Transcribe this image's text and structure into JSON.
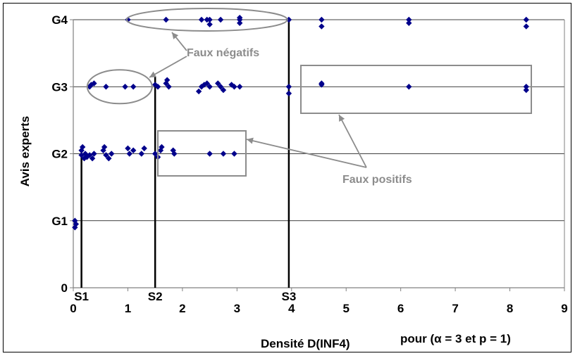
{
  "chart_data": {
    "type": "scatter",
    "title": "",
    "xlabel": "Densité D(INF4)",
    "xlabel_suffix": "pour (α = 3 et p = 1)",
    "ylabel": "Avis experts",
    "xlim": [
      0,
      9
    ],
    "x_ticks": [
      "0",
      "1",
      "2",
      "3",
      "4",
      "5",
      "6",
      "7",
      "8",
      "9"
    ],
    "y_ticks": [
      "0",
      "G1",
      "G2",
      "G3",
      "G4"
    ],
    "grid": "horizontal",
    "marker_color": "#00008b",
    "series": [
      {
        "points": [
          [
            0.03,
            0.9
          ],
          [
            0.03,
            1.0
          ],
          [
            0.05,
            0.95
          ],
          [
            0.15,
            1.98
          ],
          [
            0.15,
            2.05
          ],
          [
            0.17,
            2.1
          ],
          [
            0.2,
            1.93
          ],
          [
            0.22,
            2.0
          ],
          [
            0.25,
            1.95
          ],
          [
            0.3,
            1.98
          ],
          [
            0.35,
            1.93
          ],
          [
            0.38,
            2.0
          ],
          [
            0.55,
            2.05
          ],
          [
            0.57,
            2.1
          ],
          [
            0.6,
            1.98
          ],
          [
            0.65,
            1.93
          ],
          [
            0.7,
            2.0
          ],
          [
            1.0,
            2.08
          ],
          [
            1.03,
            2.0
          ],
          [
            1.1,
            2.05
          ],
          [
            1.25,
            2.0
          ],
          [
            1.3,
            2.08
          ],
          [
            1.5,
            2.0
          ],
          [
            1.55,
            1.95
          ],
          [
            1.6,
            2.05
          ],
          [
            1.62,
            2.1
          ],
          [
            1.83,
            2.05
          ],
          [
            1.85,
            2.0
          ],
          [
            2.5,
            2.0
          ],
          [
            2.75,
            2.0
          ],
          [
            2.95,
            2.0
          ],
          [
            0.3,
            3.0
          ],
          [
            0.33,
            3.03
          ],
          [
            0.38,
            3.05
          ],
          [
            0.6,
            3.0
          ],
          [
            0.95,
            3.0
          ],
          [
            1.1,
            3.0
          ],
          [
            1.5,
            3.03
          ],
          [
            1.55,
            3.0
          ],
          [
            1.7,
            3.05
          ],
          [
            1.72,
            3.1
          ],
          [
            1.75,
            3.0
          ],
          [
            2.3,
            2.93
          ],
          [
            2.35,
            3.0
          ],
          [
            2.4,
            3.03
          ],
          [
            2.45,
            3.05
          ],
          [
            2.5,
            3.0
          ],
          [
            2.65,
            3.05
          ],
          [
            2.7,
            3.0
          ],
          [
            2.75,
            2.95
          ],
          [
            2.9,
            3.03
          ],
          [
            2.95,
            3.0
          ],
          [
            3.05,
            3.0
          ],
          [
            3.95,
            2.9
          ],
          [
            3.95,
            3.0
          ],
          [
            4.55,
            3.03
          ],
          [
            4.55,
            3.05
          ],
          [
            6.15,
            3.0
          ],
          [
            8.3,
            2.95
          ],
          [
            8.3,
            3.0
          ],
          [
            1.0,
            4.0
          ],
          [
            1.7,
            4.0
          ],
          [
            2.35,
            4.0
          ],
          [
            2.45,
            4.0
          ],
          [
            2.5,
            4.0
          ],
          [
            2.5,
            3.93
          ],
          [
            2.7,
            4.0
          ],
          [
            3.05,
            4.0
          ],
          [
            3.05,
            3.95
          ],
          [
            3.05,
            4.03
          ],
          [
            3.95,
            4.0
          ],
          [
            4.55,
            4.0
          ],
          [
            4.55,
            3.9
          ],
          [
            6.15,
            4.0
          ],
          [
            6.15,
            3.95
          ],
          [
            8.3,
            4.0
          ],
          [
            8.3,
            3.9
          ]
        ]
      }
    ],
    "thresholds": [
      {
        "label": "S1",
        "x": 0.15,
        "y_top": 2.1
      },
      {
        "label": "S2",
        "x": 1.5,
        "y_top": 3.15
      },
      {
        "label": "S3",
        "x": 3.95,
        "y_top": 4.0
      }
    ],
    "annotations": [
      {
        "text": "Faux négatifs"
      },
      {
        "text": "Faux positifs"
      }
    ]
  }
}
